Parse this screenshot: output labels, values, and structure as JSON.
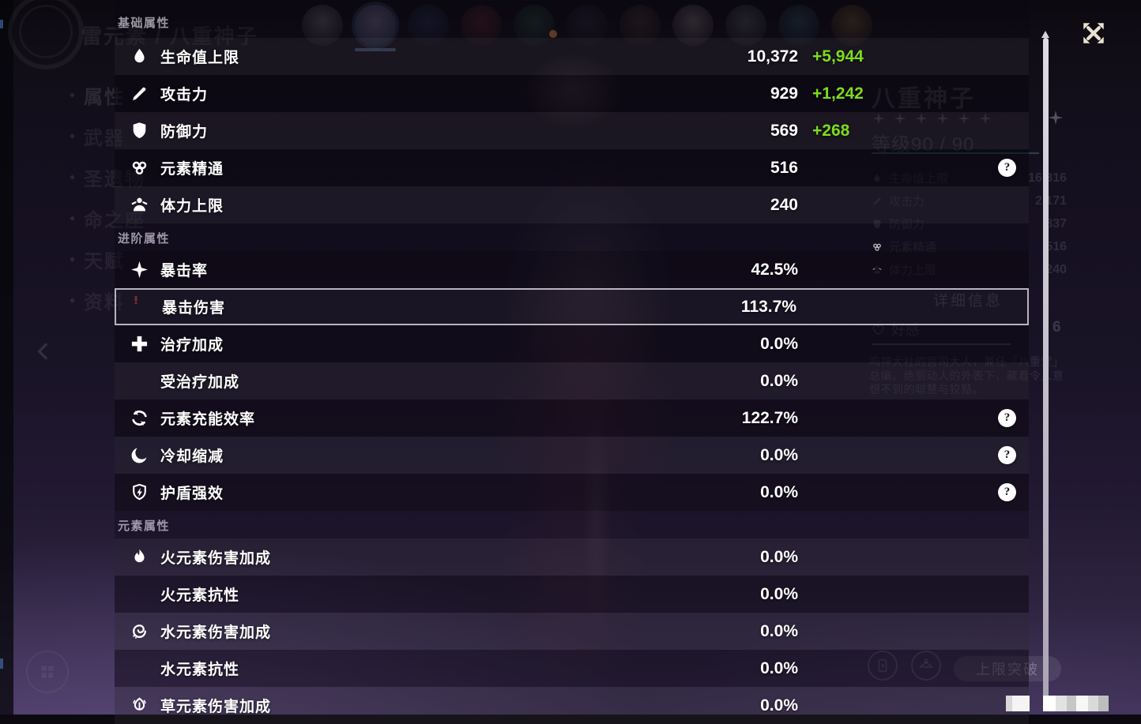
{
  "overlay": {
    "sections": [
      {
        "title": "基础属性",
        "rows": [
          {
            "icon": "hp-icon",
            "label": "生命值上限",
            "value": "10,372",
            "bonus": "+5,944"
          },
          {
            "icon": "atk-icon",
            "label": "攻击力",
            "value": "929",
            "bonus": "+1,242"
          },
          {
            "icon": "def-icon",
            "label": "防御力",
            "value": "569",
            "bonus": "+268"
          },
          {
            "icon": "elemental-mastery-icon",
            "label": "元素精通",
            "value": "516",
            "help": true
          },
          {
            "icon": "stamina-icon",
            "label": "体力上限",
            "value": "240"
          }
        ]
      },
      {
        "title": "进阶属性",
        "rows": [
          {
            "icon": "crit-rate-icon",
            "label": "暴击率",
            "value": "42.5%"
          },
          {
            "icon": "",
            "label": "暴击伤害",
            "value": "113.7%",
            "selected": true
          },
          {
            "icon": "healing-bonus-icon",
            "label": "治疗加成",
            "value": "0.0%"
          },
          {
            "icon": "",
            "label": "受治疗加成",
            "value": "0.0%"
          },
          {
            "icon": "energy-recharge-icon",
            "label": "元素充能效率",
            "value": "122.7%",
            "help": true
          },
          {
            "icon": "cooldown-reduction-icon",
            "label": "冷却缩减",
            "value": "0.0%",
            "help": true
          },
          {
            "icon": "shield-strength-icon",
            "label": "护盾强效",
            "value": "0.0%",
            "help": true
          }
        ]
      },
      {
        "title": "元素属性",
        "rows": [
          {
            "icon": "pyro-icon",
            "label": "火元素伤害加成",
            "value": "0.0%"
          },
          {
            "icon": "",
            "label": "火元素抗性",
            "value": "0.0%"
          },
          {
            "icon": "hydro-icon",
            "label": "水元素伤害加成",
            "value": "0.0%"
          },
          {
            "icon": "",
            "label": "水元素抗性",
            "value": "0.0%"
          },
          {
            "icon": "dendro-icon",
            "label": "草元素伤害加成",
            "value": "0.0%"
          }
        ]
      }
    ],
    "colors": {
      "bonus_green": "#7ddc1e"
    }
  },
  "background": {
    "top_title": "雷元素 / 八重神子",
    "sidebar": [
      {
        "label": "属性",
        "active": true
      },
      {
        "label": "武器"
      },
      {
        "label": "圣遗物"
      },
      {
        "label": "命之座"
      },
      {
        "label": "天赋"
      },
      {
        "label": "资料",
        "badge": "!"
      }
    ],
    "character": {
      "name": "八重神子",
      "stars": 6,
      "level": "等级90 / 90"
    },
    "mini_stats": [
      {
        "icon": "hp-icon",
        "label": "生命值上限",
        "value": "16,316"
      },
      {
        "icon": "atk-icon",
        "label": "攻击力",
        "value": "2,171"
      },
      {
        "icon": "def-icon",
        "label": "防御力",
        "value": "837"
      },
      {
        "icon": "elemental-mastery-icon",
        "label": "元素精通",
        "value": "516"
      },
      {
        "icon": "stamina-icon",
        "label": "体力上限",
        "value": "240"
      }
    ],
    "detail_button": "详细信息",
    "friendship": {
      "label": "好感",
      "value": "6"
    },
    "description": "鸣神大社的宫司大人，兼任「八重堂」总编。绝丽动人的外表下，藏着令人意想不到的聪慧与狡黠。",
    "ascend_button": "上限突破",
    "notification_badge": "!"
  }
}
